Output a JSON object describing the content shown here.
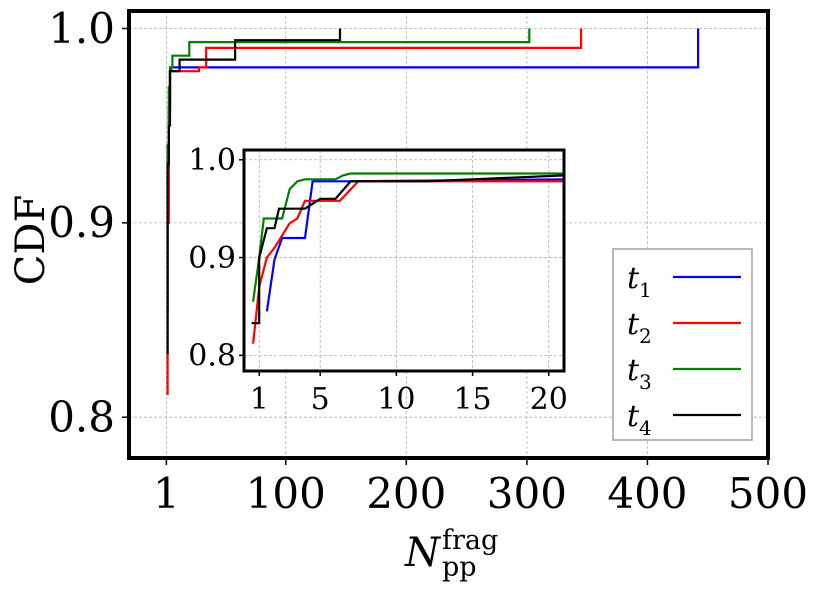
{
  "chart_data": [
    {
      "type": "line",
      "role": "main",
      "ylabel": "CDF",
      "xlabel": {
        "base": "N",
        "subscript": "pp",
        "superscript": "frag"
      },
      "xlim": [
        -30,
        500
      ],
      "ylim": [
        0.779,
        1.009
      ],
      "xticks": [
        {
          "value": 1,
          "label": "1"
        },
        {
          "value": 100,
          "label": "100"
        },
        {
          "value": 200,
          "label": "200"
        },
        {
          "value": 300,
          "label": "300"
        },
        {
          "value": 400,
          "label": "400"
        },
        {
          "value": 500,
          "label": "500"
        }
      ],
      "yticks": [
        {
          "value": 0.8,
          "label": "0.8"
        },
        {
          "value": 0.9,
          "label": "0.9"
        },
        {
          "value": 1.0,
          "label": "1.0"
        }
      ],
      "grid": true,
      "legend_position": "bottom-right",
      "series": [
        {
          "name": "t1",
          "label_base": "t",
          "label_sub": "1",
          "color": "#0000ff",
          "x": [
            1,
            2,
            2,
            3,
            3,
            4,
            4,
            5,
            5,
            442,
            442
          ],
          "y": [
            0.92,
            0.92,
            0.94,
            0.94,
            0.96,
            0.96,
            0.978,
            0.978,
            0.98,
            0.98,
            1.0
          ]
        },
        {
          "name": "t2",
          "label_base": "t",
          "label_sub": "2",
          "color": "#ff0000",
          "x": [
            1,
            2,
            2,
            3,
            3,
            4,
            4,
            28,
            28,
            34,
            34,
            345,
            345
          ],
          "y": [
            0.812,
            0.812,
            0.9,
            0.9,
            0.958,
            0.958,
            0.978,
            0.978,
            0.98,
            0.98,
            0.99,
            0.99,
            1.0
          ]
        },
        {
          "name": "t3",
          "label_base": "t",
          "label_sub": "3",
          "color": "#008000",
          "x": [
            1,
            2,
            2,
            3,
            3,
            4,
            4,
            6,
            6,
            20,
            20,
            302,
            302
          ],
          "y": [
            0.855,
            0.855,
            0.94,
            0.94,
            0.97,
            0.97,
            0.98,
            0.98,
            0.986,
            0.986,
            0.993,
            0.993,
            1.0
          ]
        },
        {
          "name": "t4",
          "label_base": "t",
          "label_sub": "4",
          "color": "#000000",
          "x": [
            1,
            2,
            2,
            3,
            3,
            4,
            4,
            12,
            12,
            58,
            58,
            145,
            145
          ],
          "y": [
            0.833,
            0.833,
            0.93,
            0.93,
            0.95,
            0.95,
            0.978,
            0.978,
            0.984,
            0.984,
            0.994,
            0.994,
            1.0
          ]
        }
      ]
    },
    {
      "type": "line",
      "role": "inset",
      "xlim": [
        0,
        21
      ],
      "ylim": [
        0.784,
        1.01
      ],
      "xticks": [
        {
          "value": 1,
          "label": "1"
        },
        {
          "value": 5,
          "label": "5"
        },
        {
          "value": 10,
          "label": "10"
        },
        {
          "value": 15,
          "label": "15"
        },
        {
          "value": 20,
          "label": "20"
        }
      ],
      "yticks": [
        {
          "value": 0.8,
          "label": "0.8"
        },
        {
          "value": 0.9,
          "label": "0.9"
        },
        {
          "value": 1.0,
          "label": "1.0"
        }
      ],
      "grid": true,
      "series": [
        {
          "name": "t1",
          "color": "#0000ff",
          "x": [
            1.5,
            2,
            2.5,
            3,
            4,
            4.5,
            7,
            21
          ],
          "y": [
            0.845,
            0.898,
            0.92,
            0.92,
            0.92,
            0.978,
            0.978,
            0.98
          ]
        },
        {
          "name": "t2",
          "color": "#ff0000",
          "x": [
            0.6,
            1,
            1.5,
            2,
            3,
            3.5,
            4,
            5,
            6.3,
            7.5,
            21
          ],
          "y": [
            0.812,
            0.87,
            0.9,
            0.91,
            0.935,
            0.94,
            0.958,
            0.958,
            0.958,
            0.978,
            0.978
          ]
        },
        {
          "name": "t3",
          "color": "#008000",
          "x": [
            0.6,
            1,
            1.3,
            2,
            2.5,
            3,
            3.5,
            4,
            6,
            6.5,
            7,
            21
          ],
          "y": [
            0.855,
            0.9,
            0.94,
            0.94,
            0.94,
            0.97,
            0.978,
            0.98,
            0.98,
            0.984,
            0.986,
            0.986
          ]
        },
        {
          "name": "t4",
          "color": "#000000",
          "x": [
            0.5,
            1,
            1,
            1.5,
            2,
            2.3,
            3,
            4,
            5,
            6,
            7,
            12,
            21
          ],
          "y": [
            0.833,
            0.833,
            0.9,
            0.93,
            0.93,
            0.95,
            0.95,
            0.95,
            0.96,
            0.96,
            0.978,
            0.978,
            0.984
          ]
        }
      ]
    }
  ]
}
